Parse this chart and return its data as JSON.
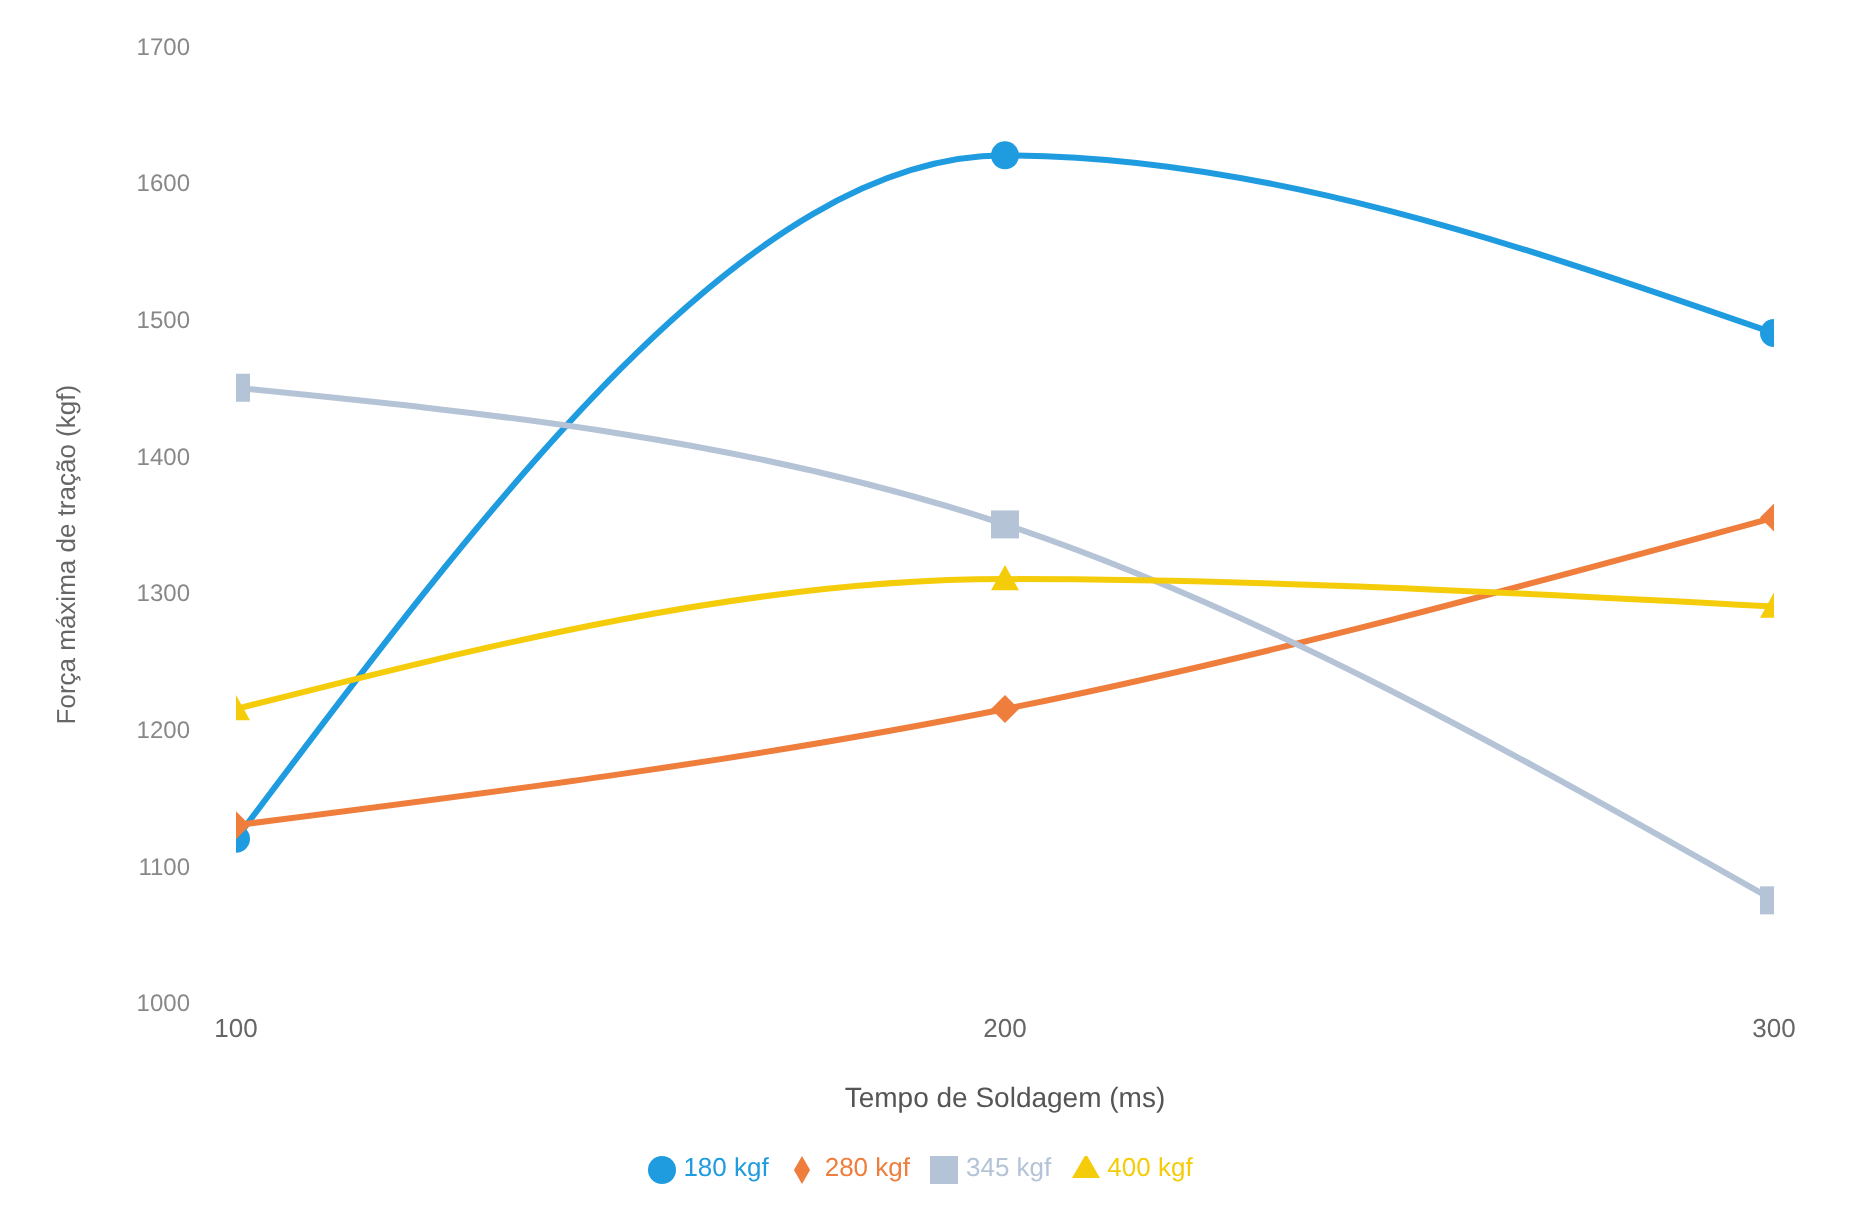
{
  "chart_data": {
    "type": "line",
    "xlabel": "Tempo de Soldagem (ms)",
    "ylabel": "Força máxima de tração (kgf)",
    "x": [
      100,
      200,
      300
    ],
    "xlim": [
      100,
      300
    ],
    "xticks": [
      100,
      200,
      300
    ],
    "ylim": [
      1000,
      1700
    ],
    "yticks": [
      1000,
      1100,
      1200,
      1300,
      1400,
      1500,
      1600,
      1700
    ],
    "grid": false,
    "legend": "bottom",
    "line_style": "solid",
    "series": [
      {
        "name": "180 kgf",
        "color": "#1f9be0",
        "marker": "circle",
        "values": [
          1120,
          1620,
          1490
        ]
      },
      {
        "name": "280 kgf",
        "color": "#ef7d3c",
        "marker": "diamond",
        "values": [
          1130,
          1215,
          1355
        ]
      },
      {
        "name": "345 kgf",
        "color": "#b4c3d6",
        "marker": "square",
        "values": [
          1450,
          1350,
          1075
        ]
      },
      {
        "name": "400 kgf",
        "color": "#f5cc0a",
        "marker": "triangle",
        "values": [
          1215,
          1310,
          1290
        ]
      }
    ]
  }
}
